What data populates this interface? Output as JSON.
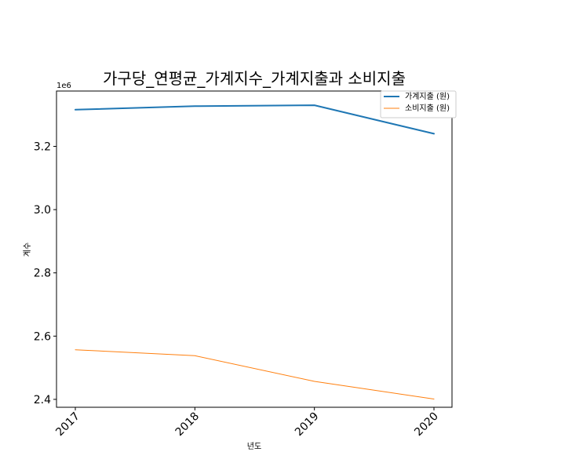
{
  "chart_data": {
    "type": "line",
    "title": "가구당_연평균_가계지수_가계지출과 소비지출",
    "xlabel": "년도",
    "ylabel": "계수",
    "y_scale_label": "1e6",
    "categories": [
      "2017",
      "2018",
      "2019",
      "2020"
    ],
    "y_tick_labels": [
      "2.4",
      "2.6",
      "2.8",
      "3.0",
      "3.2"
    ],
    "y_tick_values": [
      2400000,
      2600000,
      2800000,
      3000000,
      3200000
    ],
    "ylim": [
      2375000,
      3375000
    ],
    "grid": false,
    "legend_position": "top-right",
    "series": [
      {
        "name": "가계지출 (원)",
        "color": "#1f77b4",
        "values": [
          3316000,
          3327000,
          3330000,
          3240000
        ]
      },
      {
        "name": "소비지출 (원)",
        "color": "#ff7f0e",
        "values": [
          2557000,
          2538000,
          2457000,
          2401000
        ]
      }
    ]
  }
}
